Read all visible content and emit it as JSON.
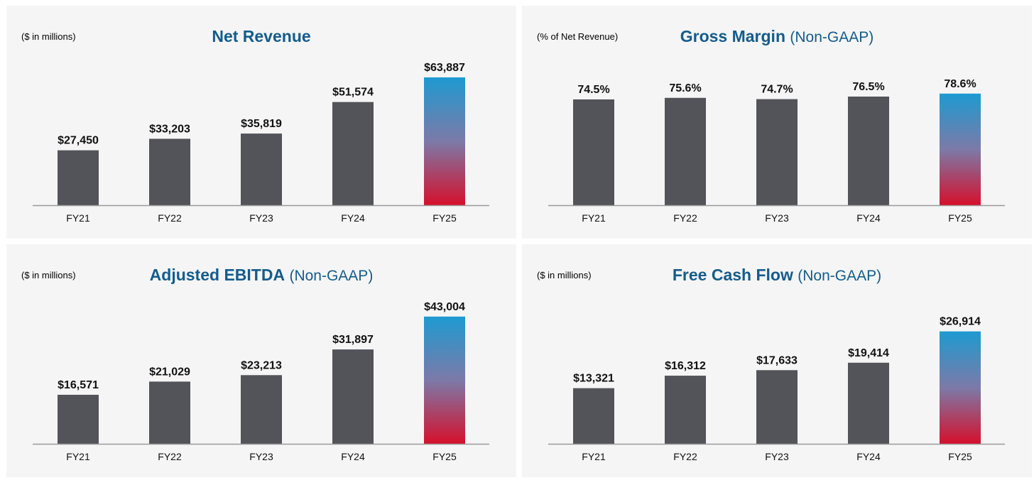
{
  "colors": {
    "bar": "#535459",
    "highlight_top": "#1e9ad1",
    "highlight_mid": "#7c7aa8",
    "highlight_bottom": "#d5102c",
    "title": "#135c8c",
    "axis": "#9a9a9a"
  },
  "chart_data": [
    {
      "type": "bar",
      "title": "Net Revenue",
      "subtitle": "",
      "unit_note": "($ in millions)",
      "categories": [
        "FY21",
        "FY22",
        "FY23",
        "FY24",
        "FY25"
      ],
      "values": [
        27450,
        33203,
        35819,
        51574,
        63887
      ],
      "labels": [
        "$27,450",
        "$33,203",
        "$35,819",
        "$51,574",
        "$63,887"
      ],
      "ylim": [
        0,
        70975
      ],
      "highlight_index": 4
    },
    {
      "type": "bar",
      "title": "Gross Margin",
      "subtitle": "(Non-GAAP)",
      "unit_note": "(% of Net Revenue)",
      "categories": [
        "FY21",
        "FY22",
        "FY23",
        "FY24",
        "FY25"
      ],
      "values": [
        74.5,
        75.6,
        74.7,
        76.5,
        78.6
      ],
      "labels": [
        "74.5%",
        "75.6%",
        "74.7%",
        "76.5%",
        "78.6%"
      ],
      "ylim": [
        0,
        100
      ],
      "highlight_index": 4
    },
    {
      "type": "bar",
      "title": "Adjusted EBITDA",
      "subtitle": "(Non-GAAP)",
      "unit_note": "($ in millions)",
      "categories": [
        "FY21",
        "FY22",
        "FY23",
        "FY24",
        "FY25"
      ],
      "values": [
        16571,
        21029,
        23213,
        31897,
        43004
      ],
      "labels": [
        "$16,571",
        "$21,029",
        "$23,213",
        "$31,897",
        "$43,004"
      ],
      "ylim": [
        0,
        48000
      ],
      "highlight_index": 4
    },
    {
      "type": "bar",
      "title": "Free Cash Flow",
      "subtitle": "(Non-GAAP)",
      "unit_note": "($ in millions)",
      "categories": [
        "FY21",
        "FY22",
        "FY23",
        "FY24",
        "FY25"
      ],
      "values": [
        13321,
        16312,
        17633,
        19414,
        26914
      ],
      "labels": [
        "$13,321",
        "$16,312",
        "$17,633",
        "$19,414",
        "$26,914"
      ],
      "ylim": [
        0,
        34000
      ],
      "highlight_index": 4
    }
  ]
}
